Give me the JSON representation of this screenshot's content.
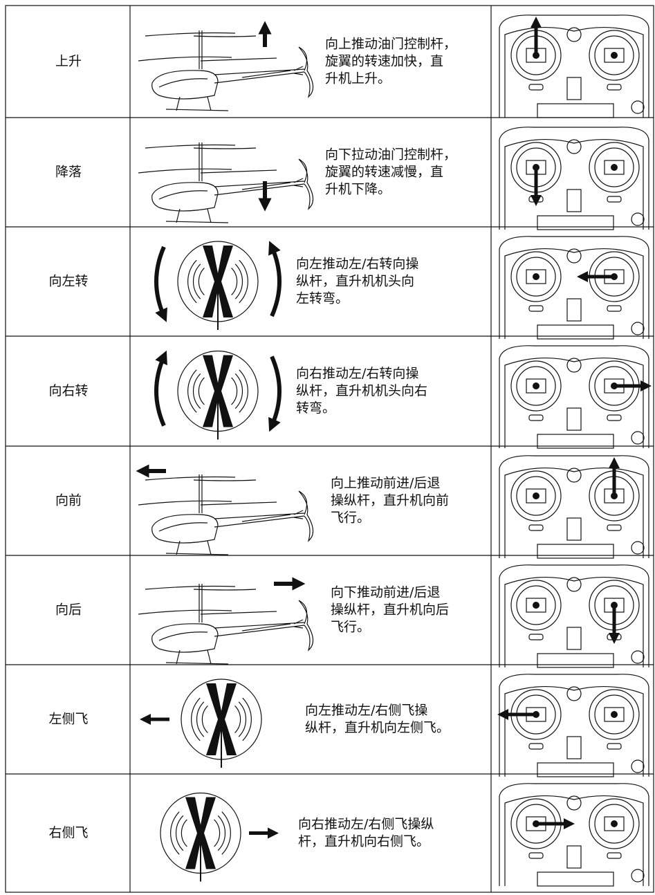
{
  "table": {
    "rows": [
      {
        "action": "上升",
        "description": [
          "向上推动油门控制杆，",
          "旋翼的转速加快，直",
          "升机上升。"
        ]
      },
      {
        "action": "降落",
        "description": [
          "向下拉动油门控制杆，",
          "旋翼的转速减慢，直",
          "升机下降。"
        ]
      },
      {
        "action": "向左转",
        "description": [
          "向左推动左/右转向操",
          "纵杆，直升机机头向",
          "左转弯。"
        ]
      },
      {
        "action": "向右转",
        "description": [
          "向右推动左/右转向操",
          "纵杆，直升机机头向右",
          "转弯。"
        ]
      },
      {
        "action": "向前",
        "description": [
          "向上推动前进/后退",
          "操纵杆，直升机向前",
          "飞行。"
        ]
      },
      {
        "action": "向后",
        "description": [
          "向下推动前进/后退",
          "操纵杆，直升机向后",
          "飞行。"
        ]
      },
      {
        "action": "左侧飞",
        "description": [
          "向左推动左/右侧飞操",
          "纵杆，直升机向左侧飞。"
        ]
      },
      {
        "action": "右侧飞",
        "description": [
          "向右推动左/右侧飞操纵",
          "杆，直升机向右侧飞。"
        ]
      }
    ]
  }
}
